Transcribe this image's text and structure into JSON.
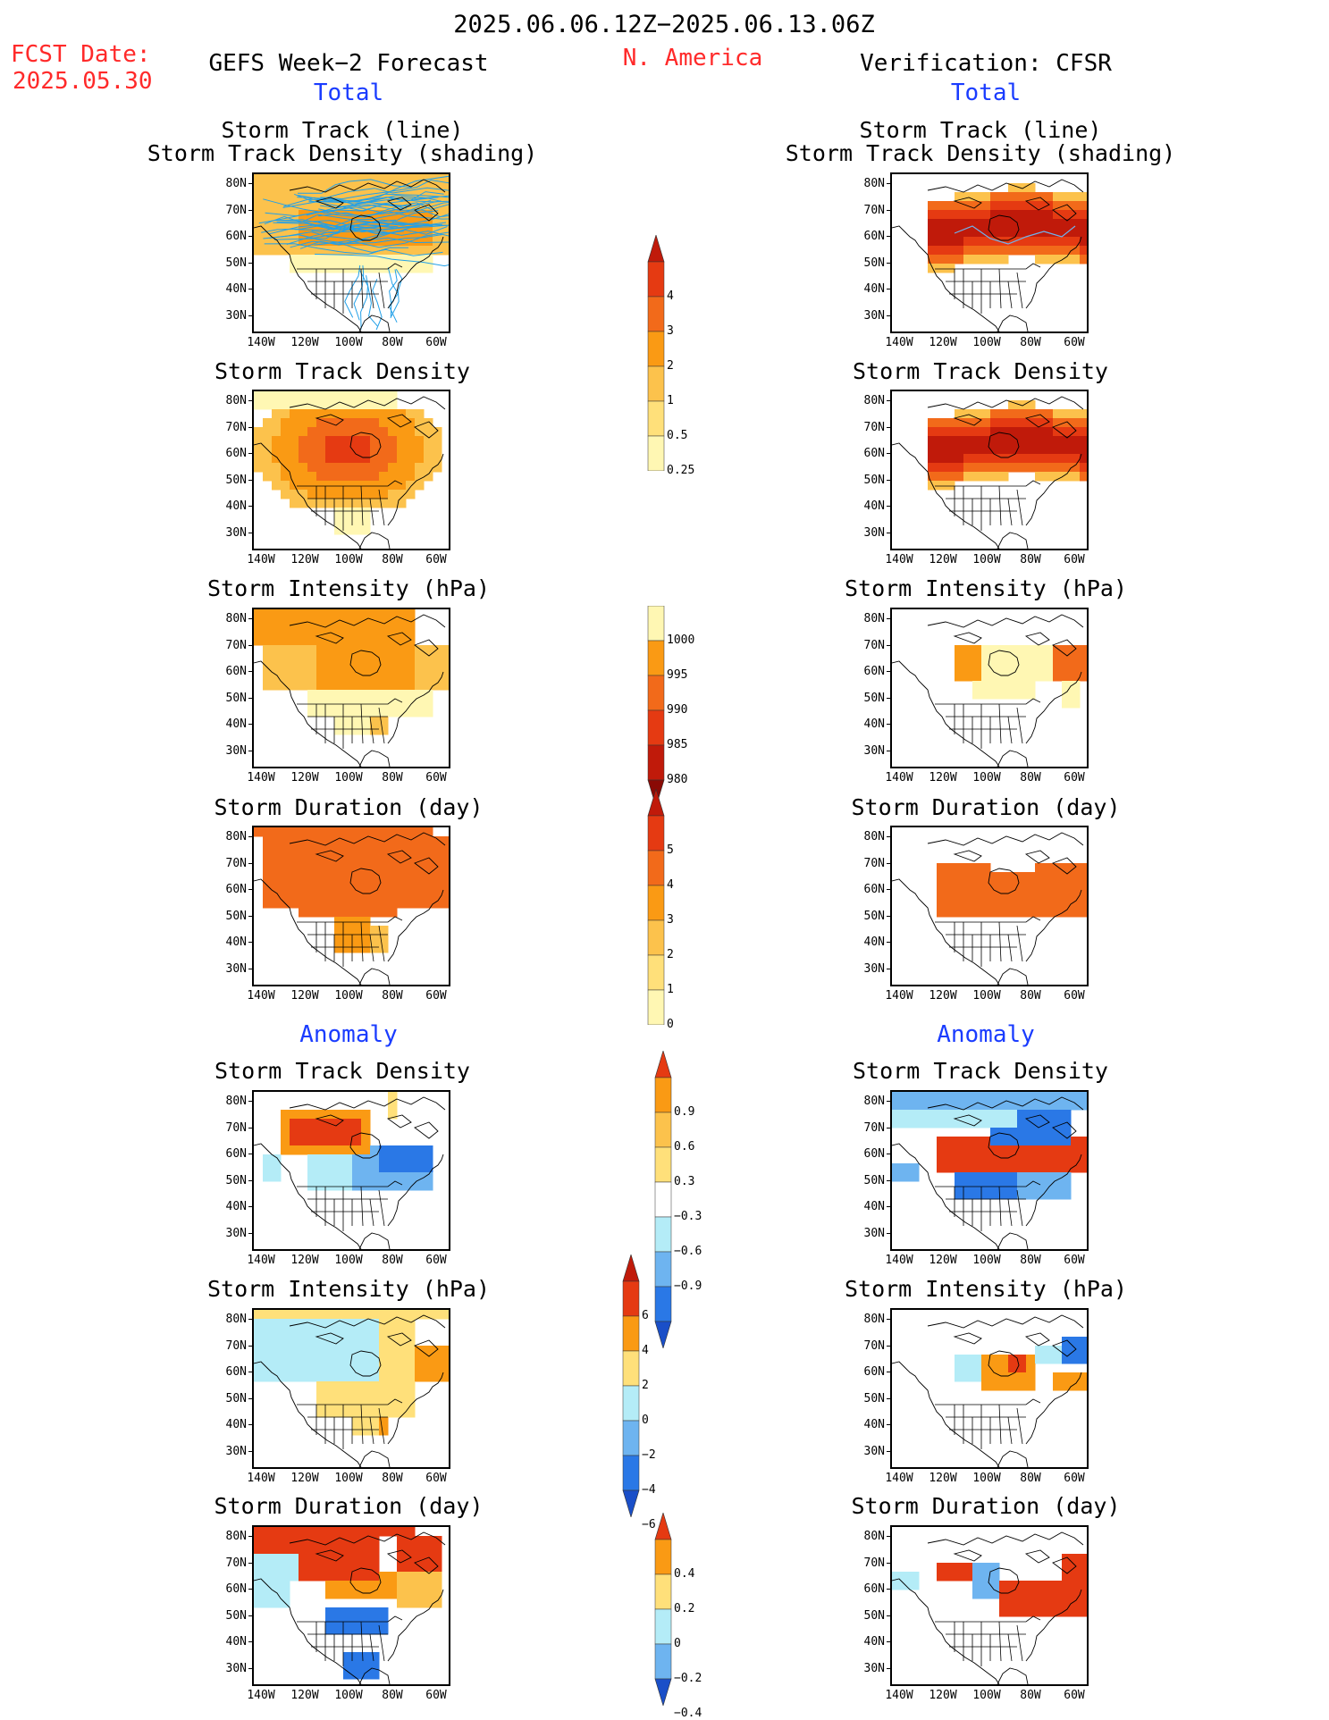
{
  "header": {
    "date_range": "2025.06.06.12Z−2025.06.13.06Z",
    "fcst_label": "FCST Date:",
    "fcst_date": "2025.05.30",
    "left_title": "GEFS Week−2 Forecast",
    "region": "N. America",
    "right_title": "Verification: CFSR",
    "total_label": "Total",
    "anomaly_label": "Anomaly"
  },
  "panel_titles": {
    "track_line": "Storm Track (line)",
    "track_shading": "Storm Track Density (shading)",
    "density": "Storm Track Density",
    "intensity": "Storm Intensity (hPa)",
    "duration": "Storm Duration (day)"
  },
  "axes": {
    "lat_labels": [
      "80N",
      "70N",
      "60N",
      "50N",
      "40N",
      "30N"
    ],
    "lon_labels": [
      "140W",
      "120W",
      "100W",
      "80W",
      "60W"
    ]
  },
  "colorbars": {
    "density_total": [
      "4",
      "3",
      "2",
      "1",
      "0.5",
      "0.25"
    ],
    "intensity_total": [
      "1000",
      "995",
      "990",
      "985",
      "980"
    ],
    "duration_total": [
      "5",
      "4",
      "3",
      "2",
      "1",
      "0"
    ],
    "density_anom": [
      "0.9",
      "0.6",
      "0.3",
      "−0.3",
      "−0.6",
      "−0.9"
    ],
    "intensity_anom": [
      "6",
      "4",
      "2",
      "0",
      "−2",
      "−4",
      "−6"
    ],
    "duration_anom": [
      "0.4",
      "0.2",
      "0",
      "−0.2",
      "−0.4"
    ]
  },
  "colors": {
    "lightyellow": "#fff7b3",
    "yellow": "#ffe07a",
    "lightorange": "#fcc24c",
    "orange": "#fa9a14",
    "darkorange": "#f26a1a",
    "red": "#e53a12",
    "darkred": "#c01a0a",
    "maroon": "#8a0a05",
    "lightblue": "#b4ecf7",
    "midblue": "#6eb4f0",
    "blue": "#2a78e6",
    "darkblue": "#1a4fc8",
    "track_cyan": "#22a0e8"
  }
}
